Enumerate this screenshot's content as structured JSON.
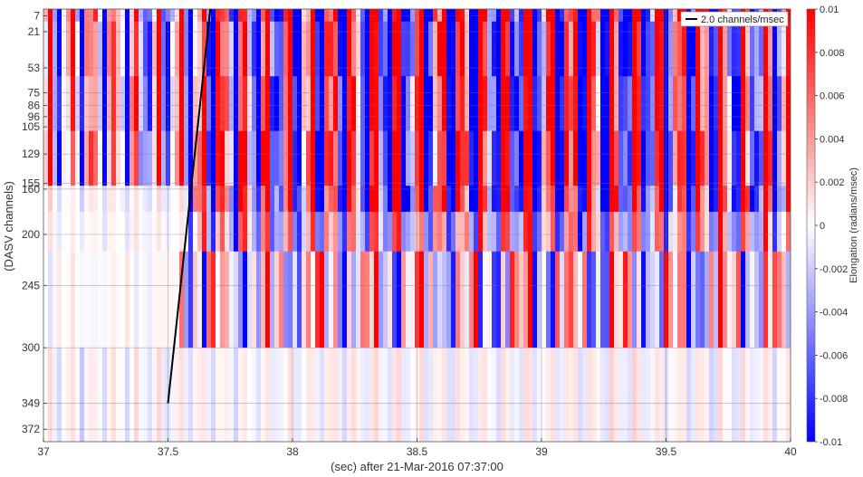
{
  "chart_data": {
    "type": "heatmap",
    "title": "",
    "xlabel": "(sec) after 21-Mar-2016 07:37:00",
    "ylabel": "(DASV channels)",
    "xlim": [
      37,
      40
    ],
    "ylim": [
      1,
      383
    ],
    "x_ticks": [
      37,
      37.5,
      38,
      38.5,
      39,
      39.5,
      40
    ],
    "x_tick_labels": [
      "37",
      "37.5",
      "38",
      "38.5",
      "39",
      "39.5",
      "40"
    ],
    "y_ticks": [
      7,
      21,
      53,
      75,
      86,
      96,
      105,
      129,
      155,
      160,
      200,
      245,
      300,
      349,
      372
    ],
    "y_tick_labels": [
      "7",
      "21",
      "53",
      "75",
      "86",
      "96",
      "105",
      "129",
      "155",
      "160",
      "200",
      "245",
      "300",
      "349",
      "372"
    ],
    "grid": true,
    "colorbar": {
      "label": "Elongation (radians/msec)",
      "range": [
        -0.01,
        0.01
      ],
      "ticks": [
        0.01,
        0.008,
        0.006,
        0.004,
        0.002,
        0,
        -0.002,
        -0.004,
        -0.006,
        -0.008,
        -0.01
      ],
      "tick_labels": [
        "0.01",
        "0.008",
        "0.006",
        "0.004",
        "0.002",
        "0",
        "-0.002",
        "-0.004",
        "-0.006",
        "-0.008",
        "-0.01"
      ],
      "colormap": "blue-white-red",
      "low_color": "#0000ff",
      "mid_color": "#ffffff",
      "high_color": "#ff0000"
    },
    "legend": {
      "entries": [
        "2.0 channels/msec"
      ],
      "placement": "top-right"
    },
    "series": [
      {
        "name": "2.0 channels/msec",
        "type": "line",
        "color": "#000000",
        "x": [
          37.5,
          37.67
        ],
        "y": [
          349,
          1
        ]
      }
    ]
  }
}
